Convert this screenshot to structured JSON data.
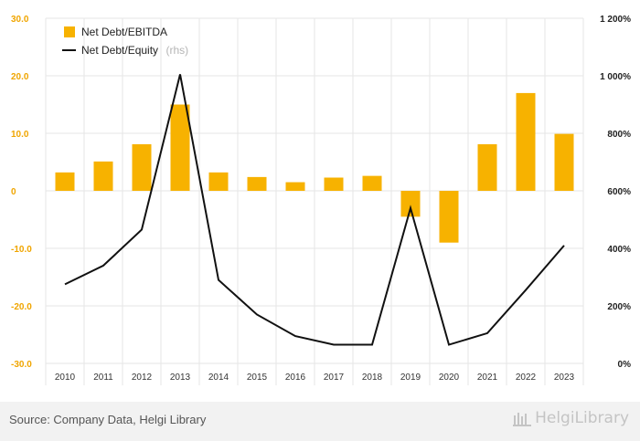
{
  "chart_data": {
    "type": "bar",
    "categories": [
      "2010",
      "2011",
      "2012",
      "2013",
      "2014",
      "2015",
      "2016",
      "2017",
      "2018",
      "2019",
      "2020",
      "2021",
      "2022",
      "2023"
    ],
    "series": [
      {
        "name": "Net Debt/EBITDA",
        "type": "bar",
        "axis": "left",
        "values": [
          3.2,
          5.1,
          8.1,
          15.0,
          3.2,
          2.4,
          1.5,
          2.3,
          2.6,
          -4.5,
          -9.0,
          8.1,
          17.0,
          9.9
        ]
      },
      {
        "name": "Net Debt/Equity",
        "name_suffix": "(rhs)",
        "type": "line",
        "axis": "right",
        "values": [
          275,
          340,
          465,
          1005,
          290,
          170,
          95,
          65,
          65,
          540,
          65,
          105,
          255,
          410
        ]
      }
    ],
    "left_axis": {
      "ylim": [
        -30,
        30
      ],
      "ticks": [
        "30.0",
        "20.0",
        "10.0",
        "0",
        "-10.0",
        "-20.0",
        "-30.0"
      ]
    },
    "right_axis": {
      "ylim": [
        0,
        1200
      ],
      "ticks": [
        "1 200%",
        "1 000%",
        "800%",
        "600%",
        "400%",
        "200%",
        "0%"
      ]
    },
    "grid": true,
    "legend_position": "top-left",
    "colors": {
      "bar": "#f7b200",
      "line": "#111111",
      "grid": "#e5e5e5",
      "left_tick": "#f0a500"
    }
  },
  "footer": {
    "source": "Source: Company Data, Helgi Library",
    "brand": "HelgiLibrary"
  }
}
